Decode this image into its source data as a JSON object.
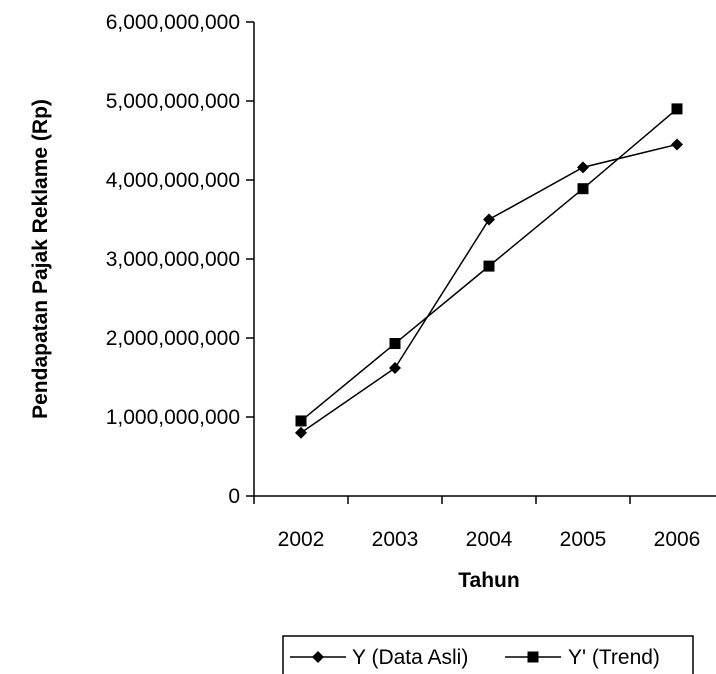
{
  "chart_data": {
    "type": "line",
    "title": "",
    "xlabel": "Tahun",
    "ylabel": "Pendapatan Pajak Reklame (Rp)",
    "categories": [
      "2002",
      "2003",
      "2004",
      "2005",
      "2006"
    ],
    "ylim": [
      0,
      6000000000
    ],
    "yticks": [
      0,
      1000000000,
      2000000000,
      3000000000,
      4000000000,
      5000000000,
      6000000000
    ],
    "ytick_labels": [
      "0",
      "1,000,000,000",
      "2,000,000,000",
      "3,000,000,000",
      "4,000,000,000",
      "5,000,000,000",
      "6,000,000,000"
    ],
    "grid": false,
    "legend_position": "bottom",
    "series": [
      {
        "name": "Y (Data Asli)",
        "marker": "diamond",
        "color": "#000000",
        "values": [
          800000000,
          1620000000,
          3500000000,
          4160000000,
          4450000000
        ]
      },
      {
        "name": "Y' (Trend)",
        "marker": "square",
        "color": "#000000",
        "values": [
          950000000,
          1930000000,
          2910000000,
          3890000000,
          4900000000
        ]
      }
    ]
  }
}
